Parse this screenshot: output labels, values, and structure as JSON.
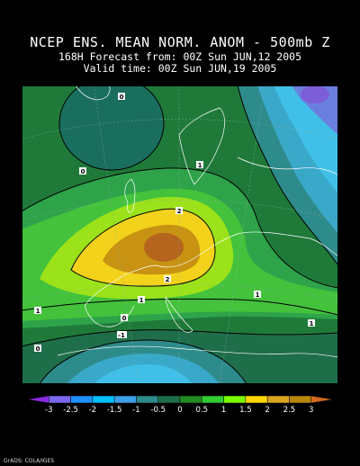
{
  "header": {
    "title": "NCEP ENS. MEAN NORM. ANOM - 500mb Z",
    "forecast_line": "168H Forecast from: 00Z Sun JUN,12 2005",
    "valid_line": "Valid time: 00Z Sun JUN,19 2005"
  },
  "contour_labels": [
    "0",
    "0",
    "1",
    "2",
    "2",
    "1",
    "1",
    "1",
    "0",
    "-1",
    "1",
    "1",
    "0"
  ],
  "colorbar": {
    "ticks": [
      "-3",
      "-2.5",
      "-2",
      "-1.5",
      "-1",
      "-0.5",
      "0",
      "0.5",
      "1",
      "1.5",
      "2",
      "2.5",
      "3"
    ],
    "colors": [
      "#8a2be2",
      "#7b68ee",
      "#1e90ff",
      "#00bfff",
      "#3ca0e6",
      "#2e8b8b",
      "#1f6e4a",
      "#228b22",
      "#32cd32",
      "#7cfc00",
      "#ffd700",
      "#daa520",
      "#b8860b",
      "#d2691e"
    ]
  },
  "credit": "GrADS: COLA/IGES"
}
